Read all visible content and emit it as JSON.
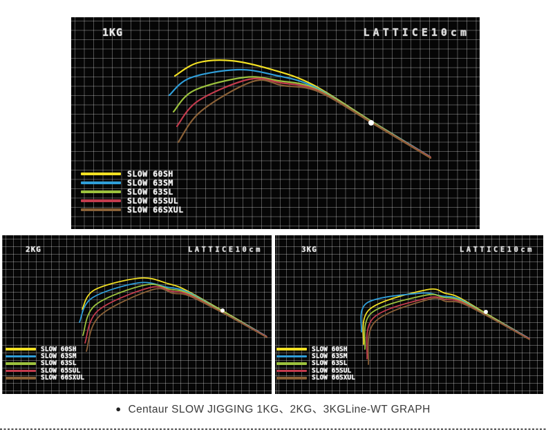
{
  "window": {
    "background": "#ffffff"
  },
  "caption": {
    "bullet": "●",
    "text": "Centaur SLOW JIGGING 1KG、2KG、3KGLine-WT GRAPH"
  },
  "palette": {
    "panel_background": "#060606",
    "grid_line": "rgba(255,255,255,0.30)",
    "label_text": "#e8e8e8",
    "weight_dot": "#ffffff"
  },
  "chart_data": [
    {
      "type": "line",
      "load_label": "1KG",
      "title": "LATTICE10cm",
      "grid_note": "lattice cell = 10 cm, qualitative rod bend curves under 1KG load",
      "stroke_width": 2.2,
      "dot_radius": 4,
      "weight_dot": {
        "x": 434,
        "y": 153
      },
      "series": [
        {
          "name": "SLOW 60SH",
          "color": "#f2e023",
          "points": [
            [
              150,
              85
            ],
            [
              183,
              66
            ],
            [
              232,
              63
            ],
            [
              291,
              76
            ],
            [
              350,
              98
            ],
            [
              435,
              151
            ],
            [
              519,
              202
            ]
          ]
        },
        {
          "name": "SLOW 63SM",
          "color": "#2f9ed9",
          "points": [
            [
              142,
              113
            ],
            [
              172,
              88
            ],
            [
              240,
              76
            ],
            [
              295,
              84
            ],
            [
              352,
              101
            ],
            [
              436,
              152
            ],
            [
              519,
              202
            ]
          ]
        },
        {
          "name": "SLOW 63SL",
          "color": "#9cc23d",
          "points": [
            [
              148,
              137
            ],
            [
              178,
              106
            ],
            [
              252,
              87
            ],
            [
              300,
              92
            ],
            [
              355,
              104
            ],
            [
              437,
              153
            ],
            [
              519,
              203
            ]
          ]
        },
        {
          "name": "SLOW 65SUL",
          "color": "#c43b4d",
          "points": [
            [
              153,
              158
            ],
            [
              184,
              121
            ],
            [
              257,
              90
            ],
            [
              303,
              95
            ],
            [
              356,
              106
            ],
            [
              437,
              154
            ],
            [
              520,
              203
            ]
          ]
        },
        {
          "name": "SLOW 66SXUL",
          "color": "#8b6137",
          "points": [
            [
              155,
              181
            ],
            [
              188,
              136
            ],
            [
              263,
              93
            ],
            [
              306,
              99
            ],
            [
              358,
              108
            ],
            [
              438,
              155
            ],
            [
              520,
              204
            ]
          ]
        }
      ]
    },
    {
      "type": "line",
      "load_label": "2KG",
      "title": "LATTICE10cm",
      "grid_note": "lattice cell = 10 cm, qualitative rod bend curves under 2KG load",
      "stroke_width": 1.8,
      "dot_radius": 3,
      "weight_dot": {
        "x": 319,
        "y": 109
      },
      "series": [
        {
          "name": "SLOW 60SH",
          "color": "#f2e023",
          "points": [
            [
              116,
              107
            ],
            [
              134,
              79
            ],
            [
              200,
              62
            ],
            [
              240,
              70
            ],
            [
              267,
              80
            ],
            [
              320,
              110
            ],
            [
              382,
              146
            ]
          ]
        },
        {
          "name": "SLOW 63SM",
          "color": "#2f9ed9",
          "points": [
            [
              112,
              126
            ],
            [
              130,
              91
            ],
            [
              197,
              69
            ],
            [
              238,
              75
            ],
            [
              268,
              82
            ],
            [
              320,
              111
            ],
            [
              382,
              146
            ]
          ]
        },
        {
          "name": "SLOW 63SL",
          "color": "#9cc23d",
          "points": [
            [
              117,
              145
            ],
            [
              135,
              101
            ],
            [
              207,
              72
            ],
            [
              242,
              78
            ],
            [
              269,
              84
            ],
            [
              321,
              112
            ],
            [
              382,
              147
            ]
          ]
        },
        {
          "name": "SLOW 65SUL",
          "color": "#c43b4d",
          "points": [
            [
              120,
              156
            ],
            [
              139,
              109
            ],
            [
              213,
              76
            ],
            [
              245,
              81
            ],
            [
              270,
              86
            ],
            [
              321,
              113
            ],
            [
              383,
              147
            ]
          ]
        },
        {
          "name": "SLOW 66SXUL",
          "color": "#8b6137",
          "points": [
            [
              122,
              168
            ],
            [
              141,
              117
            ],
            [
              217,
              79
            ],
            [
              247,
              84
            ],
            [
              271,
              88
            ],
            [
              322,
              114
            ],
            [
              383,
              148
            ]
          ]
        }
      ]
    },
    {
      "type": "line",
      "load_label": "3KG",
      "title": "LATTICE10cm",
      "grid_note": "lattice cell = 10 cm, qualitative rod bend curves under 3KG load",
      "stroke_width": 1.8,
      "dot_radius": 3,
      "weight_dot": {
        "x": 305,
        "y": 111
      },
      "series": [
        {
          "name": "SLOW 60SH",
          "color": "#f2e023",
          "points": [
            [
              128,
              158
            ],
            [
              137,
              107
            ],
            [
              219,
              79
            ],
            [
              246,
              84
            ],
            [
              266,
              90
            ],
            [
              303,
              112
            ],
            [
              367,
              149
            ]
          ]
        },
        {
          "name": "SLOW 63SM",
          "color": "#2f9ed9",
          "points": [
            [
              125,
              140
            ],
            [
              133,
              98
            ],
            [
              209,
              84
            ],
            [
              241,
              88
            ],
            [
              266,
              92
            ],
            [
              303,
              113
            ],
            [
              367,
              149
            ]
          ]
        },
        {
          "name": "SLOW 63SL",
          "color": "#9cc23d",
          "points": [
            [
              130,
              165
            ],
            [
              139,
              113
            ],
            [
              217,
              87
            ],
            [
              244,
              90
            ],
            [
              267,
              94
            ],
            [
              304,
              114
            ],
            [
              367,
              150
            ]
          ]
        },
        {
          "name": "SLOW 65SUL",
          "color": "#c43b4d",
          "points": [
            [
              133,
              179
            ],
            [
              142,
              120
            ],
            [
              220,
              91
            ],
            [
              247,
              93
            ],
            [
              268,
              96
            ],
            [
              304,
              115
            ],
            [
              368,
              150
            ]
          ]
        },
        {
          "name": "SLOW 66SXUL",
          "color": "#8b6137",
          "points": [
            [
              135,
              187
            ],
            [
              144,
              126
            ],
            [
              222,
              93
            ],
            [
              248,
              96
            ],
            [
              269,
              98
            ],
            [
              305,
              116
            ],
            [
              368,
              151
            ]
          ]
        }
      ]
    }
  ]
}
